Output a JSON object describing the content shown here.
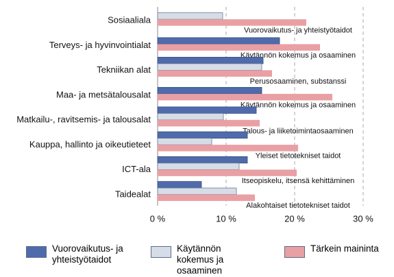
{
  "chart_data": {
    "type": "bar",
    "orientation": "horizontal",
    "categories": [
      "Sosiaaliala",
      "Terveys- ja hyvinvointialat",
      "Tekniikan alat",
      "Maa- ja metsätalousalat",
      "Matkailu-, ravitsemis- ja talousalat",
      "Kauppa, hallinto ja oikeutieteet",
      "ICT-ala",
      "Taidealat"
    ],
    "series": [
      {
        "name": "Vuorovaikutus- ja yhteistyötaidot",
        "color": "#4f6bab",
        "values": [
          null,
          17.8,
          15.4,
          15.2,
          14.4,
          13.1,
          13.1,
          6.4
        ]
      },
      {
        "name": "Käytännön kokemus ja osaaminen",
        "color": "#d7dde6",
        "values": [
          9.5,
          null,
          15.2,
          null,
          9.6,
          7.9,
          11.9,
          11.5
        ]
      },
      {
        "name": "Tärkein maininta",
        "color": "#e9a0a4",
        "values": [
          21.7,
          23.7,
          16.7,
          25.5,
          14.9,
          20.5,
          20.3,
          14.2
        ],
        "annotations": [
          "Vuorovaikutus- ja yhteistyötaidot",
          "Käytännön kokemus ja osaaminen",
          "Perusosaaminen, substanssi",
          "Käytännön kokemus ja osaaminen",
          "Talous- ja liiketoimintaosaaminen",
          "Yleiset tietotekniset taidot",
          "Itseopiskelu, itsensä kehittäminen",
          "Alakohtaiset tietotekniset taidot"
        ]
      }
    ],
    "xlim": [
      0,
      30
    ],
    "xticks": [
      {
        "value": 0,
        "label": "0 %"
      },
      {
        "value": 10,
        "label": "10 %"
      },
      {
        "value": 20,
        "label": "20 %"
      },
      {
        "value": 30,
        "label": "30 %"
      }
    ],
    "grid": true
  }
}
